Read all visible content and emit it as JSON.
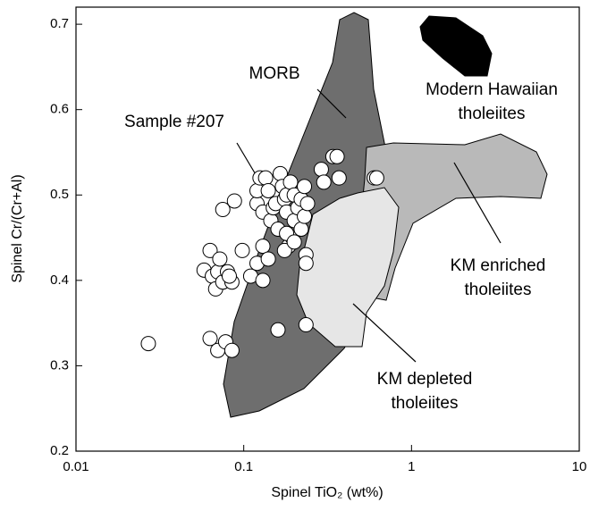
{
  "chart_data": {
    "type": "scatter",
    "xlabel": "Spinel TiO₂ (wt%)",
    "ylabel": "Spinel Cr/(Cr+Al)",
    "xscale": "log",
    "xlim": [
      0.01,
      10
    ],
    "xticks": [
      0.01,
      0.1,
      1,
      10
    ],
    "ylim": [
      0.2,
      0.72
    ],
    "yticks": [
      0.2,
      0.3,
      0.4,
      0.5,
      0.6,
      0.7
    ],
    "marker_color": "#ffffff",
    "annotations": [
      {
        "lines": [
          "MORB"
        ]
      },
      {
        "lines": [
          "Sample #207"
        ]
      },
      {
        "lines": [
          "Modern Hawaiian",
          "tholeiites"
        ]
      },
      {
        "lines": [
          "KM enriched",
          "tholeiites"
        ]
      },
      {
        "lines": [
          "KM depleted",
          "tholeiites"
        ]
      }
    ],
    "x": [
      0.027,
      0.063,
      0.07,
      0.078,
      0.085,
      0.058,
      0.063,
      0.065,
      0.068,
      0.07,
      0.072,
      0.075,
      0.08,
      0.085,
      0.082,
      0.098,
      0.075,
      0.088,
      0.11,
      0.12,
      0.13,
      0.13,
      0.14,
      0.12,
      0.12,
      0.125,
      0.13,
      0.135,
      0.14,
      0.145,
      0.15,
      0.155,
      0.16,
      0.165,
      0.17,
      0.175,
      0.18,
      0.18,
      0.185,
      0.19,
      0.195,
      0.2,
      0.2,
      0.21,
      0.22,
      0.22,
      0.23,
      0.23,
      0.24,
      0.235,
      0.235,
      0.175,
      0.18,
      0.2,
      0.16,
      0.235,
      0.29,
      0.3,
      0.34,
      0.37,
      0.36,
      0.6,
      0.62
    ],
    "values": [
      0.326,
      0.332,
      0.318,
      0.328,
      0.318,
      0.412,
      0.435,
      0.405,
      0.39,
      0.41,
      0.425,
      0.398,
      0.41,
      0.398,
      0.405,
      0.435,
      0.483,
      0.493,
      0.405,
      0.42,
      0.44,
      0.4,
      0.425,
      0.49,
      0.505,
      0.52,
      0.48,
      0.52,
      0.505,
      0.47,
      0.485,
      0.49,
      0.46,
      0.525,
      0.51,
      0.495,
      0.5,
      0.48,
      0.44,
      0.515,
      0.45,
      0.47,
      0.5,
      0.485,
      0.46,
      0.495,
      0.475,
      0.51,
      0.49,
      0.43,
      0.42,
      0.435,
      0.455,
      0.445,
      0.342,
      0.348,
      0.53,
      0.515,
      0.545,
      0.52,
      0.545,
      0.52,
      0.52
    ]
  }
}
